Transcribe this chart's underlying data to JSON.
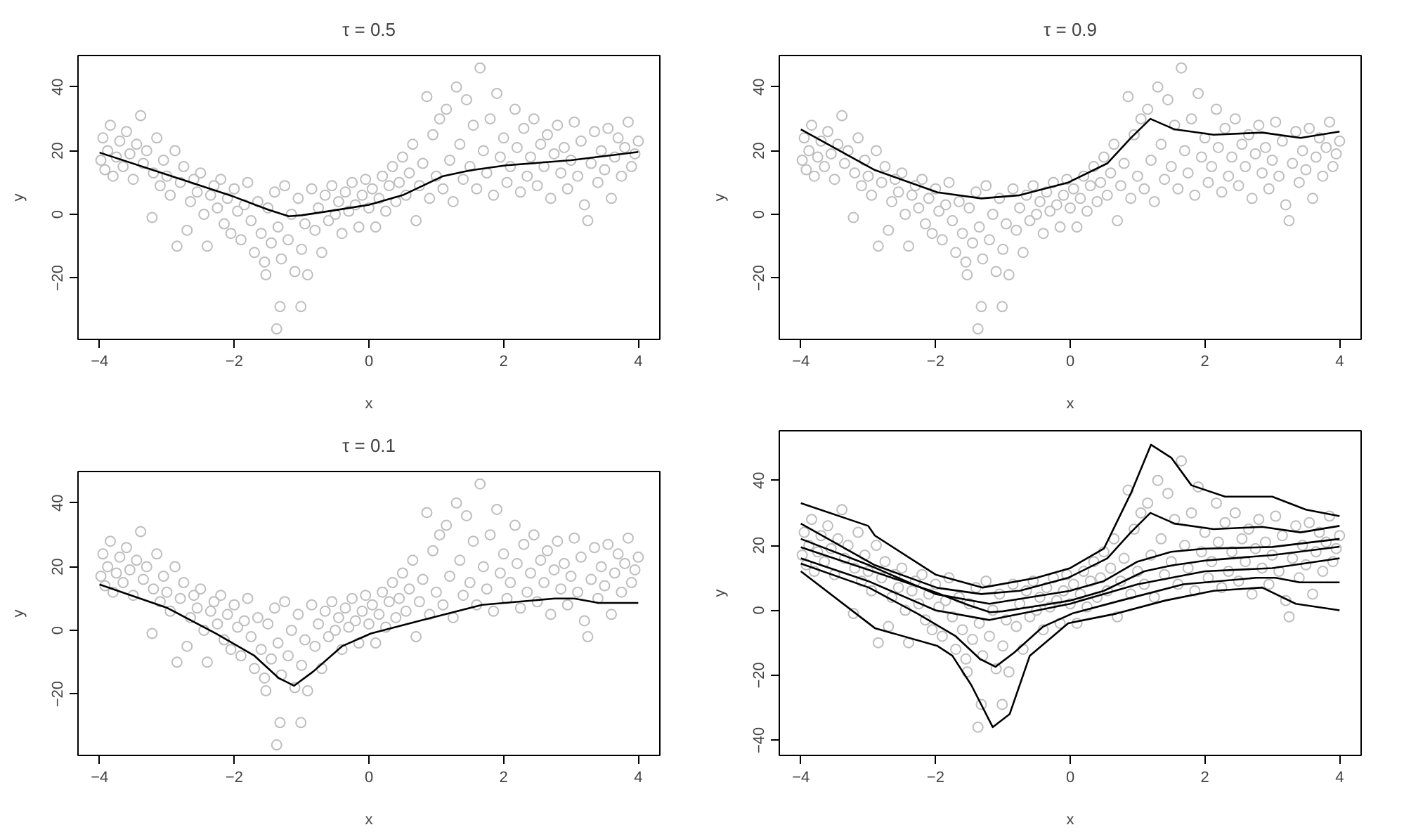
{
  "chart_data": [
    {
      "type": "scatter",
      "title": "τ = 0.5",
      "xlabel": "x",
      "ylabel": "y",
      "xlim": [
        -4.32,
        4.32
      ],
      "ylim": [
        -39.3,
        49.9
      ],
      "xticks": [
        -4,
        -2,
        0,
        2,
        4
      ],
      "yticks": [
        -20,
        0,
        20,
        40
      ],
      "grid": false,
      "marker": "circle",
      "series": [
        {
          "color": "#bebebe",
          "x": [
            -3.98,
            -3.95,
            -3.92,
            -3.88,
            -3.84,
            -3.8,
            -3.75,
            -3.7,
            -3.65,
            -3.6,
            -3.55,
            -3.5,
            -3.45,
            -3.39,
            -3.35,
            -3.3,
            -3.22,
            -3.2,
            -3.15,
            -3.1,
            -3.05,
            -3.0,
            -2.95,
            -2.88,
            -2.85,
            -2.8,
            -2.75,
            -2.7,
            -2.65,
            -2.6,
            -2.55,
            -2.5,
            -2.45,
            -2.4,
            -2.35,
            -2.3,
            -2.25,
            -2.2,
            -2.15,
            -2.1,
            -2.05,
            -2.0,
            -1.95,
            -1.9,
            -1.85,
            -1.8,
            -1.75,
            -1.7,
            -1.65,
            -1.6,
            -1.55,
            -1.53,
            -1.5,
            -1.45,
            -1.4,
            -1.37,
            -1.35,
            -1.32,
            -1.3,
            -1.25,
            -1.2,
            -1.15,
            -1.1,
            -1.05,
            -1.01,
            -1.0,
            -0.95,
            -0.91,
            -0.85,
            -0.8,
            -0.75,
            -0.7,
            -0.65,
            -0.6,
            -0.55,
            -0.5,
            -0.45,
            -0.4,
            -0.35,
            -0.3,
            -0.25,
            -0.2,
            -0.15,
            -0.1,
            -0.05,
            0.0,
            0.05,
            0.1,
            0.15,
            0.2,
            0.25,
            0.3,
            0.35,
            0.4,
            0.45,
            0.5,
            0.55,
            0.6,
            0.65,
            0.7,
            0.75,
            0.8,
            0.86,
            0.9,
            0.95,
            1.0,
            1.05,
            1.1,
            1.15,
            1.2,
            1.25,
            1.3,
            1.35,
            1.4,
            1.45,
            1.5,
            1.55,
            1.6,
            1.65,
            1.7,
            1.75,
            1.8,
            1.85,
            1.9,
            1.95,
            2.0,
            2.05,
            2.1,
            2.17,
            2.2,
            2.25,
            2.3,
            2.35,
            2.4,
            2.45,
            2.5,
            2.55,
            2.6,
            2.65,
            2.7,
            2.75,
            2.8,
            2.85,
            2.9,
            2.95,
            3.0,
            3.05,
            3.1,
            3.15,
            3.2,
            3.25,
            3.3,
            3.35,
            3.4,
            3.45,
            3.5,
            3.55,
            3.6,
            3.65,
            3.7,
            3.75,
            3.8,
            3.85,
            3.9,
            3.95,
            4.0
          ],
          "values": [
            17,
            24,
            14,
            20,
            28,
            12,
            18,
            23,
            15,
            26,
            19,
            11,
            22,
            31,
            16,
            20,
            -1,
            13,
            24,
            9,
            17,
            12,
            6,
            20,
            -10,
            10,
            15,
            -5,
            4,
            11,
            7,
            13,
            0,
            -10,
            6,
            9,
            2,
            11,
            -3,
            5,
            -6,
            8,
            1,
            -8,
            3,
            10,
            -2,
            -12,
            4,
            -6,
            -15,
            -19,
            2,
            -9,
            7,
            -36,
            -4,
            -29,
            -14,
            9,
            -8,
            0,
            -18,
            5,
            -29,
            -11,
            -3,
            -19,
            8,
            -5,
            2,
            -12,
            6,
            -2,
            9,
            0,
            4,
            -6,
            7,
            1,
            10,
            3,
            -4,
            6,
            11,
            2,
            8,
            -4,
            5,
            12,
            1,
            9,
            15,
            4,
            10,
            18,
            6,
            13,
            22,
            -2,
            9,
            16,
            37,
            5,
            25,
            12,
            30,
            8,
            33,
            17,
            4,
            40,
            22,
            11,
            36,
            15,
            28,
            8,
            46,
            20,
            13,
            30,
            6,
            38,
            18,
            24,
            10,
            15,
            33,
            21,
            7,
            27,
            12,
            18,
            30,
            9,
            22,
            15,
            25,
            5,
            19,
            28,
            13,
            21,
            8,
            17,
            29,
            12,
            23,
            3,
            -2,
            16,
            26,
            10,
            20,
            14,
            27,
            5,
            18,
            24,
            12,
            21,
            29,
            15,
            19,
            23
          ]
        },
        {
          "type": "line",
          "color": "#000000",
          "x": [
            -4,
            -3,
            -2,
            -1.5,
            -1.19,
            -1,
            -0.5,
            0,
            0.5,
            1.1,
            1.5,
            2.04,
            3,
            4
          ],
          "values": [
            19.4,
            12.5,
            5.5,
            1.5,
            -0.6,
            -0.3,
            1.3,
            3,
            6,
            12,
            13.8,
            15.4,
            17,
            19.6
          ],
          "marker": "none"
        }
      ]
    },
    {
      "type": "scatter",
      "title": "τ = 0.9",
      "xlabel": "x",
      "ylabel": "y",
      "xlim": [
        -4.32,
        4.32
      ],
      "ylim": [
        -39.3,
        49.9
      ],
      "xticks": [
        -4,
        -2,
        0,
        2,
        4
      ],
      "yticks": [
        -20,
        0,
        20,
        40
      ],
      "grid": false,
      "marker": "circle",
      "series": [
        {
          "type": "scatter",
          "color": "#bebebe",
          "x": [
            -3.98,
            -3.95,
            -3.92,
            -3.88,
            -3.84,
            -3.8,
            -3.75,
            -3.7,
            -3.65,
            -3.6,
            -3.55,
            -3.5,
            -3.45,
            -3.39,
            -3.35,
            -3.3,
            -3.22,
            -3.2,
            -3.15,
            -3.1,
            -3.05,
            -3.0,
            -2.95,
            -2.88,
            -2.85,
            -2.8,
            -2.75,
            -2.7,
            -2.65,
            -2.6,
            -2.55,
            -2.5,
            -2.45,
            -2.4,
            -2.35,
            -2.3,
            -2.25,
            -2.2,
            -2.15,
            -2.1,
            -2.05,
            -2.0,
            -1.95,
            -1.9,
            -1.85,
            -1.8,
            -1.75,
            -1.7,
            -1.65,
            -1.6,
            -1.55,
            -1.53,
            -1.5,
            -1.45,
            -1.4,
            -1.37,
            -1.35,
            -1.32,
            -1.3,
            -1.25,
            -1.2,
            -1.15,
            -1.1,
            -1.05,
            -1.01,
            -1.0,
            -0.95,
            -0.91,
            -0.85,
            -0.8,
            -0.75,
            -0.7,
            -0.65,
            -0.6,
            -0.55,
            -0.5,
            -0.45,
            -0.4,
            -0.35,
            -0.3,
            -0.25,
            -0.2,
            -0.15,
            -0.1,
            -0.05,
            0.0,
            0.05,
            0.1,
            0.15,
            0.2,
            0.25,
            0.3,
            0.35,
            0.4,
            0.45,
            0.5,
            0.55,
            0.6,
            0.65,
            0.7,
            0.75,
            0.8,
            0.86,
            0.9,
            0.95,
            1.0,
            1.05,
            1.1,
            1.15,
            1.2,
            1.25,
            1.3,
            1.35,
            1.4,
            1.45,
            1.5,
            1.55,
            1.6,
            1.65,
            1.7,
            1.75,
            1.8,
            1.85,
            1.9,
            1.95,
            2.0,
            2.05,
            2.1,
            2.17,
            2.2,
            2.25,
            2.3,
            2.35,
            2.4,
            2.45,
            2.5,
            2.55,
            2.6,
            2.65,
            2.7,
            2.75,
            2.8,
            2.85,
            2.9,
            2.95,
            3.0,
            3.05,
            3.1,
            3.15,
            3.2,
            3.25,
            3.3,
            3.35,
            3.4,
            3.45,
            3.5,
            3.55,
            3.6,
            3.65,
            3.7,
            3.75,
            3.8,
            3.85,
            3.9,
            3.95,
            4.0
          ],
          "values": [
            17,
            24,
            14,
            20,
            28,
            12,
            18,
            23,
            15,
            26,
            19,
            11,
            22,
            31,
            16,
            20,
            -1,
            13,
            24,
            9,
            17,
            12,
            6,
            20,
            -10,
            10,
            15,
            -5,
            4,
            11,
            7,
            13,
            0,
            -10,
            6,
            9,
            2,
            11,
            -3,
            5,
            -6,
            8,
            1,
            -8,
            3,
            10,
            -2,
            -12,
            4,
            -6,
            -15,
            -19,
            2,
            -9,
            7,
            -36,
            -4,
            -29,
            -14,
            9,
            -8,
            0,
            -18,
            5,
            -29,
            -11,
            -3,
            -19,
            8,
            -5,
            2,
            -12,
            6,
            -2,
            9,
            0,
            4,
            -6,
            7,
            1,
            10,
            3,
            -4,
            6,
            11,
            2,
            8,
            -4,
            5,
            12,
            1,
            9,
            15,
            4,
            10,
            18,
            6,
            13,
            22,
            -2,
            9,
            16,
            37,
            5,
            25,
            12,
            30,
            8,
            33,
            17,
            4,
            40,
            22,
            11,
            36,
            15,
            28,
            8,
            46,
            20,
            13,
            30,
            6,
            38,
            18,
            24,
            10,
            15,
            33,
            21,
            7,
            27,
            12,
            18,
            30,
            9,
            22,
            15,
            25,
            5,
            19,
            28,
            13,
            21,
            8,
            17,
            29,
            12,
            23,
            3,
            -2,
            16,
            26,
            10,
            20,
            14,
            27,
            5,
            18,
            24,
            12,
            21,
            29,
            15,
            19,
            23
          ]
        },
        {
          "type": "line",
          "color": "#000000",
          "x": [
            -4,
            -2.9,
            -1.97,
            -1.32,
            -0.75,
            -0.03,
            0.55,
            0.9,
            1.19,
            1.55,
            2.13,
            2.85,
            3.42,
            4
          ],
          "values": [
            26.7,
            13.9,
            6.9,
            5,
            6,
            10,
            16,
            24,
            30,
            26.7,
            25,
            25.7,
            24,
            26
          ],
          "marker": "none"
        }
      ]
    },
    {
      "type": "scatter",
      "title": "τ = 0.1",
      "xlabel": "x",
      "ylabel": "y",
      "xlim": [
        -4.32,
        4.32
      ],
      "ylim": [
        -39.3,
        49.9
      ],
      "xticks": [
        -4,
        -2,
        0,
        2,
        4
      ],
      "yticks": [
        -20,
        0,
        20,
        40
      ],
      "grid": false,
      "marker": "circle",
      "series": [
        {
          "type": "scatter",
          "color": "#bebebe",
          "x": [
            -3.98,
            -3.95,
            -3.92,
            -3.88,
            -3.84,
            -3.8,
            -3.75,
            -3.7,
            -3.65,
            -3.6,
            -3.55,
            -3.5,
            -3.45,
            -3.39,
            -3.35,
            -3.3,
            -3.22,
            -3.2,
            -3.15,
            -3.1,
            -3.05,
            -3.0,
            -2.95,
            -2.88,
            -2.85,
            -2.8,
            -2.75,
            -2.7,
            -2.65,
            -2.6,
            -2.55,
            -2.5,
            -2.45,
            -2.4,
            -2.35,
            -2.3,
            -2.25,
            -2.2,
            -2.15,
            -2.1,
            -2.05,
            -2.0,
            -1.95,
            -1.9,
            -1.85,
            -1.8,
            -1.75,
            -1.7,
            -1.65,
            -1.6,
            -1.55,
            -1.53,
            -1.5,
            -1.45,
            -1.4,
            -1.37,
            -1.35,
            -1.32,
            -1.3,
            -1.25,
            -1.2,
            -1.15,
            -1.1,
            -1.05,
            -1.01,
            -1.0,
            -0.95,
            -0.91,
            -0.85,
            -0.8,
            -0.75,
            -0.7,
            -0.65,
            -0.6,
            -0.55,
            -0.5,
            -0.45,
            -0.4,
            -0.35,
            -0.3,
            -0.25,
            -0.2,
            -0.15,
            -0.1,
            -0.05,
            0.0,
            0.05,
            0.1,
            0.15,
            0.2,
            0.25,
            0.3,
            0.35,
            0.4,
            0.45,
            0.5,
            0.55,
            0.6,
            0.65,
            0.7,
            0.75,
            0.8,
            0.86,
            0.9,
            0.95,
            1.0,
            1.05,
            1.1,
            1.15,
            1.2,
            1.25,
            1.3,
            1.35,
            1.4,
            1.45,
            1.5,
            1.55,
            1.6,
            1.65,
            1.7,
            1.75,
            1.8,
            1.85,
            1.9,
            1.95,
            2.0,
            2.05,
            2.1,
            2.17,
            2.2,
            2.25,
            2.3,
            2.35,
            2.4,
            2.45,
            2.5,
            2.55,
            2.6,
            2.65,
            2.7,
            2.75,
            2.8,
            2.85,
            2.9,
            2.95,
            3.0,
            3.05,
            3.1,
            3.15,
            3.2,
            3.25,
            3.3,
            3.35,
            3.4,
            3.45,
            3.5,
            3.55,
            3.6,
            3.65,
            3.7,
            3.75,
            3.8,
            3.85,
            3.9,
            3.95,
            4.0
          ],
          "values": [
            17,
            24,
            14,
            20,
            28,
            12,
            18,
            23,
            15,
            26,
            19,
            11,
            22,
            31,
            16,
            20,
            -1,
            13,
            24,
            9,
            17,
            12,
            6,
            20,
            -10,
            10,
            15,
            -5,
            4,
            11,
            7,
            13,
            0,
            -10,
            6,
            9,
            2,
            11,
            -3,
            5,
            -6,
            8,
            1,
            -8,
            3,
            10,
            -2,
            -12,
            4,
            -6,
            -15,
            -19,
            2,
            -9,
            7,
            -36,
            -4,
            -29,
            -14,
            9,
            -8,
            0,
            -18,
            5,
            -29,
            -11,
            -3,
            -19,
            8,
            -5,
            2,
            -12,
            6,
            -2,
            9,
            0,
            4,
            -6,
            7,
            1,
            10,
            3,
            -4,
            6,
            11,
            2,
            8,
            -4,
            5,
            12,
            1,
            9,
            15,
            4,
            10,
            18,
            6,
            13,
            22,
            -2,
            9,
            16,
            37,
            5,
            25,
            12,
            30,
            8,
            33,
            17,
            4,
            40,
            22,
            11,
            36,
            15,
            28,
            8,
            46,
            20,
            13,
            30,
            6,
            38,
            18,
            24,
            10,
            15,
            33,
            21,
            7,
            27,
            12,
            18,
            30,
            9,
            22,
            15,
            25,
            5,
            19,
            28,
            13,
            21,
            8,
            17,
            29,
            12,
            23,
            3,
            -2,
            16,
            26,
            10,
            20,
            14,
            27,
            5,
            18,
            24,
            12,
            21,
            29,
            15,
            19,
            23
          ]
        },
        {
          "type": "line",
          "color": "#000000",
          "x": [
            -4,
            -2.99,
            -2.27,
            -1.7,
            -1.34,
            -1.11,
            -0.83,
            -0.4,
            0.03,
            0.75,
            1.68,
            2.76,
            3.05,
            3.41,
            4
          ],
          "values": [
            14.4,
            7,
            -1,
            -8,
            -15,
            -17.4,
            -13,
            -5,
            -1,
            3,
            8,
            10,
            10,
            8.6,
            8.6
          ],
          "marker": "none"
        }
      ]
    },
    {
      "type": "scatter",
      "xlabel": "x",
      "ylabel": "y",
      "xlim": [
        -4.32,
        4.32
      ],
      "ylim": [
        -44.7,
        55.3
      ],
      "xticks": [
        -4,
        -2,
        0,
        2,
        4
      ],
      "yticks": [
        -40,
        -20,
        0,
        20,
        40
      ],
      "grid": false,
      "marker": "circle",
      "series": [
        {
          "type": "scatter",
          "color": "#bebebe",
          "x": [
            -3.98,
            -3.95,
            -3.92,
            -3.88,
            -3.84,
            -3.8,
            -3.75,
            -3.7,
            -3.65,
            -3.6,
            -3.55,
            -3.5,
            -3.45,
            -3.39,
            -3.35,
            -3.3,
            -3.22,
            -3.2,
            -3.15,
            -3.1,
            -3.05,
            -3.0,
            -2.95,
            -2.88,
            -2.85,
            -2.8,
            -2.75,
            -2.7,
            -2.65,
            -2.6,
            -2.55,
            -2.5,
            -2.45,
            -2.4,
            -2.35,
            -2.3,
            -2.25,
            -2.2,
            -2.15,
            -2.1,
            -2.05,
            -2.0,
            -1.95,
            -1.9,
            -1.85,
            -1.8,
            -1.75,
            -1.7,
            -1.65,
            -1.6,
            -1.55,
            -1.53,
            -1.5,
            -1.45,
            -1.4,
            -1.37,
            -1.35,
            -1.32,
            -1.3,
            -1.25,
            -1.2,
            -1.15,
            -1.1,
            -1.05,
            -1.01,
            -1.0,
            -0.95,
            -0.91,
            -0.85,
            -0.8,
            -0.75,
            -0.7,
            -0.65,
            -0.6,
            -0.55,
            -0.5,
            -0.45,
            -0.4,
            -0.35,
            -0.3,
            -0.25,
            -0.2,
            -0.15,
            -0.1,
            -0.05,
            0.0,
            0.05,
            0.1,
            0.15,
            0.2,
            0.25,
            0.3,
            0.35,
            0.4,
            0.45,
            0.5,
            0.55,
            0.6,
            0.65,
            0.7,
            0.75,
            0.8,
            0.86,
            0.9,
            0.95,
            1.0,
            1.05,
            1.1,
            1.15,
            1.2,
            1.25,
            1.3,
            1.35,
            1.4,
            1.45,
            1.5,
            1.55,
            1.6,
            1.65,
            1.7,
            1.75,
            1.8,
            1.85,
            1.9,
            1.95,
            2.0,
            2.05,
            2.1,
            2.17,
            2.2,
            2.25,
            2.3,
            2.35,
            2.4,
            2.45,
            2.5,
            2.55,
            2.6,
            2.65,
            2.7,
            2.75,
            2.8,
            2.85,
            2.9,
            2.95,
            3.0,
            3.05,
            3.1,
            3.15,
            3.2,
            3.25,
            3.3,
            3.35,
            3.4,
            3.45,
            3.5,
            3.55,
            3.6,
            3.65,
            3.7,
            3.75,
            3.8,
            3.85,
            3.9,
            3.95,
            4.0
          ],
          "values": [
            17,
            24,
            14,
            20,
            28,
            12,
            18,
            23,
            15,
            26,
            19,
            11,
            22,
            31,
            16,
            20,
            -1,
            13,
            24,
            9,
            17,
            12,
            6,
            20,
            -10,
            10,
            15,
            -5,
            4,
            11,
            7,
            13,
            0,
            -10,
            6,
            9,
            2,
            11,
            -3,
            5,
            -6,
            8,
            1,
            -8,
            3,
            10,
            -2,
            -12,
            4,
            -6,
            -15,
            -19,
            2,
            -9,
            7,
            -36,
            -4,
            -29,
            -14,
            9,
            -8,
            0,
            -18,
            5,
            -29,
            -11,
            -3,
            -19,
            8,
            -5,
            2,
            -12,
            6,
            -2,
            9,
            0,
            4,
            -6,
            7,
            1,
            10,
            3,
            -4,
            6,
            11,
            2,
            8,
            -4,
            5,
            12,
            1,
            9,
            15,
            4,
            10,
            18,
            6,
            13,
            22,
            -2,
            9,
            16,
            37,
            5,
            25,
            12,
            30,
            8,
            33,
            17,
            4,
            40,
            22,
            11,
            36,
            15,
            28,
            8,
            46,
            20,
            13,
            30,
            6,
            38,
            18,
            24,
            10,
            15,
            33,
            21,
            7,
            27,
            12,
            18,
            30,
            9,
            22,
            15,
            25,
            5,
            19,
            28,
            13,
            21,
            8,
            17,
            29,
            12,
            23,
            3,
            -2,
            16,
            26,
            10,
            20,
            14,
            27,
            5,
            18,
            24,
            12,
            21,
            29,
            15,
            19,
            23
          ]
        },
        {
          "type": "line",
          "color": "#000000",
          "x": [
            -4,
            -3,
            -2.9,
            -2,
            -1.3,
            -0.5,
            0,
            0.5,
            0.9,
            1.2,
            1.5,
            1.8,
            2.3,
            3,
            3.5,
            4
          ],
          "values": [
            33,
            26,
            23,
            11,
            7,
            10,
            13,
            19,
            36,
            51,
            47,
            38.5,
            35,
            35,
            31,
            29
          ],
          "marker": "none"
        },
        {
          "type": "line",
          "color": "#000000",
          "x": [
            -4,
            -2.9,
            -1.97,
            -1.32,
            -0.75,
            -0.03,
            0.55,
            0.9,
            1.19,
            1.55,
            2.13,
            2.85,
            3.42,
            4
          ],
          "values": [
            26.7,
            13.9,
            6.9,
            5,
            6,
            10,
            16,
            24,
            30,
            26.7,
            25,
            25.7,
            24,
            26
          ],
          "marker": "none"
        },
        {
          "type": "line",
          "color": "#000000",
          "x": [
            -4,
            -3,
            -2,
            -1.2,
            0,
            0.5,
            1,
            1.5,
            2,
            3,
            4
          ],
          "values": [
            22,
            14,
            5,
            2,
            6,
            9,
            15,
            18,
            19,
            19.5,
            22
          ],
          "marker": "none"
        },
        {
          "type": "line",
          "color": "#000000",
          "x": [
            -4,
            -3,
            -2,
            -1.5,
            -1.19,
            -1,
            -0.5,
            0,
            0.5,
            1.1,
            1.5,
            2.04,
            3,
            4
          ],
          "values": [
            19.4,
            12.5,
            5.5,
            1.5,
            -0.6,
            -0.3,
            1.3,
            3,
            6,
            12,
            13.8,
            15.4,
            17,
            19.6
          ],
          "marker": "none"
        },
        {
          "type": "line",
          "color": "#000000",
          "x": [
            -4,
            -3,
            -2,
            -1.2,
            0,
            1,
            2,
            3,
            4
          ],
          "values": [
            16,
            9,
            0,
            -3,
            2,
            8,
            12,
            13,
            16
          ],
          "marker": "none"
        },
        {
          "type": "line",
          "color": "#000000",
          "x": [
            -4,
            -2.99,
            -2.27,
            -1.7,
            -1.34,
            -1.11,
            -0.83,
            -0.4,
            0.03,
            0.75,
            1.68,
            2.76,
            3.05,
            3.41,
            4
          ],
          "values": [
            14.4,
            7,
            -1,
            -8,
            -15,
            -17.4,
            -13,
            -5,
            -1,
            3,
            8,
            10,
            10,
            8.6,
            8.6
          ],
          "marker": "none"
        },
        {
          "type": "line",
          "color": "#000000",
          "x": [
            -4,
            -2.9,
            -1.97,
            -1.75,
            -1.47,
            -1.15,
            -0.9,
            -0.6,
            -0.03,
            0.69,
            1.41,
            2.13,
            2.85,
            3.35,
            4
          ],
          "values": [
            12,
            -5.5,
            -11,
            -14,
            -23,
            -36,
            -32,
            -14,
            -4,
            -1,
            3,
            6,
            7,
            2,
            0
          ],
          "marker": "none"
        }
      ]
    }
  ]
}
